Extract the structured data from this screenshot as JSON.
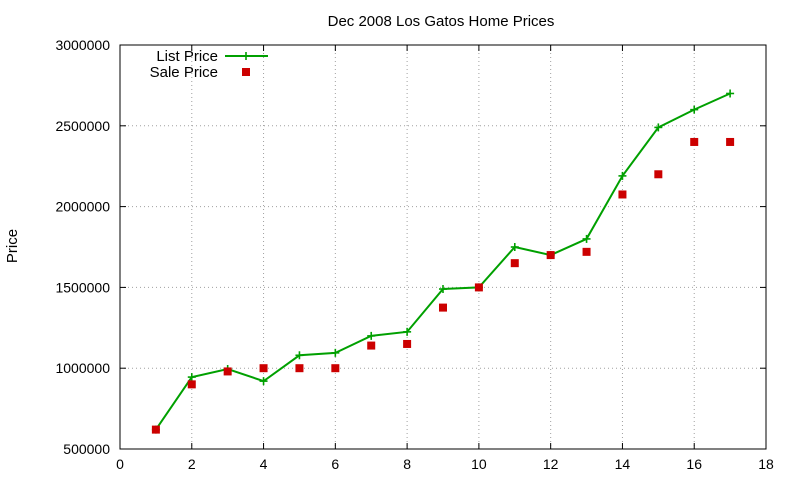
{
  "chart_data": {
    "type": "line",
    "title": "Dec 2008 Los Gatos Home Prices",
    "xlabel": "",
    "ylabel": "Price",
    "xlim": [
      0,
      18
    ],
    "ylim": [
      500000,
      3000000
    ],
    "x_ticks": [
      0,
      2,
      4,
      6,
      8,
      10,
      12,
      14,
      16,
      18
    ],
    "y_ticks": [
      500000,
      1000000,
      1500000,
      2000000,
      2500000,
      3000000
    ],
    "grid": true,
    "legend_position": "top-left",
    "series": [
      {
        "name": "List Price",
        "style": "line-with-plus-markers",
        "color": "#00a000",
        "x": [
          1,
          2,
          3,
          4,
          5,
          6,
          7,
          8,
          9,
          10,
          11,
          12,
          13,
          14,
          15,
          16,
          17
        ],
        "values": [
          620000,
          945000,
          995000,
          920000,
          1080000,
          1095000,
          1200000,
          1225000,
          1490000,
          1500000,
          1750000,
          1700000,
          1800000,
          2190000,
          2490000,
          2600000,
          2700000
        ]
      },
      {
        "name": "Sale Price",
        "style": "square-markers",
        "color": "#cc0000",
        "x": [
          1,
          2,
          3,
          4,
          5,
          6,
          7,
          8,
          9,
          10,
          11,
          12,
          13,
          14,
          15,
          16,
          17
        ],
        "values": [
          620000,
          900000,
          980000,
          1000000,
          1000000,
          1000000,
          1140000,
          1150000,
          1375000,
          1500000,
          1650000,
          1700000,
          1720000,
          2075000,
          2200000,
          2400000,
          2400000
        ]
      }
    ]
  }
}
